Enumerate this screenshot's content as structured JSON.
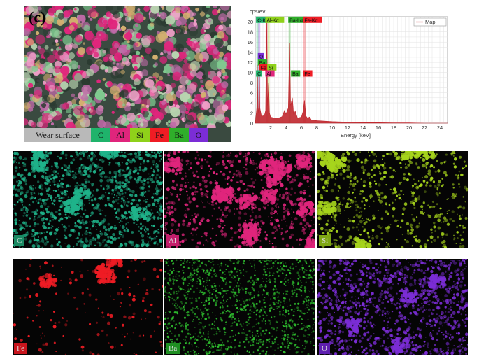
{
  "composite": {
    "panel_letter": "(c)",
    "legend": [
      {
        "label": "Wear surface",
        "color": "#b9b9b9"
      },
      {
        "label": "C",
        "color": "#1fb36b"
      },
      {
        "label": "Al",
        "color": "#e0257c"
      },
      {
        "label": "Si",
        "color": "#8fd11a"
      },
      {
        "label": "Fe",
        "color": "#ef1c24"
      },
      {
        "label": "Ba",
        "color": "#2fae2a"
      },
      {
        "label": "O",
        "color": "#7b2dd6"
      }
    ]
  },
  "chart_data": {
    "type": "line",
    "ylabel": "cps/eV",
    "xlabel": "Energy [keV]",
    "xlim": [
      0,
      25
    ],
    "ylim": [
      0,
      21
    ],
    "xticks": [
      2,
      4,
      6,
      8,
      10,
      12,
      14,
      16,
      18,
      20,
      22,
      24
    ],
    "yticks": [
      0,
      2,
      4,
      6,
      8,
      10,
      12,
      14,
      16,
      18,
      20
    ],
    "legend": "Map",
    "legend_position": "top-right",
    "grid": true,
    "series": [
      {
        "name": "Map",
        "color": "#c0272d",
        "x": [
          0,
          0.2,
          0.28,
          0.35,
          0.45,
          0.52,
          0.6,
          0.8,
          1.0,
          1.2,
          1.35,
          1.49,
          1.6,
          1.74,
          1.85,
          2.0,
          2.5,
          3.0,
          3.5,
          3.8,
          4.0,
          4.3,
          4.47,
          4.6,
          4.83,
          5.0,
          5.2,
          5.5,
          6.0,
          6.2,
          6.4,
          6.6,
          6.8,
          7.06,
          7.3,
          8.0,
          10.0,
          12.0,
          14.0,
          16.0,
          18.0,
          20.0,
          22.0,
          24.0,
          25.0
        ],
        "y": [
          0,
          3.0,
          11.5,
          3.0,
          2.0,
          12.6,
          3.0,
          1.5,
          1.4,
          1.6,
          2.5,
          21.0,
          3.5,
          8.0,
          2.0,
          1.2,
          1.0,
          1.0,
          1.3,
          2.5,
          1.8,
          3.0,
          15.8,
          3.5,
          5.0,
          1.6,
          2.4,
          1.0,
          1.2,
          2.2,
          4.5,
          1.4,
          1.0,
          1.2,
          0.6,
          0.5,
          0.3,
          0.2,
          0.1,
          0.1,
          0.05,
          0.05,
          0,
          0,
          0
        ]
      }
    ],
    "annotations": [
      {
        "label": "C-Kα",
        "x": 0.28,
        "y": 20.2,
        "color": "#1fb36b"
      },
      {
        "label": "Al-Kα",
        "x": 1.49,
        "y": 20.2,
        "color": "#8fd11a"
      },
      {
        "label": "Ba-Lα",
        "x": 4.47,
        "y": 20.2,
        "color": "#2fae2a"
      },
      {
        "label": "Fe-Kα",
        "x": 6.4,
        "y": 20.2,
        "color": "#ef1c24"
      },
      {
        "label": "O",
        "x": 0.52,
        "y": 13.0,
        "color": "#7b2dd6"
      },
      {
        "label": "Ba",
        "x": 0.52,
        "y": 11.8,
        "color": "#2fae2a"
      },
      {
        "label": "Fe",
        "x": 0.7,
        "y": 10.8,
        "color": "#ef1c24"
      },
      {
        "label": "Si",
        "x": 1.74,
        "y": 10.8,
        "color": "#8fd11a"
      },
      {
        "label": "C",
        "x": 0.28,
        "y": 9.6,
        "color": "#1fb36b"
      },
      {
        "label": "Al",
        "x": 1.49,
        "y": 9.6,
        "color": "#e0257c"
      },
      {
        "label": "Ba",
        "x": 4.83,
        "y": 9.6,
        "color": "#2fae2a"
      },
      {
        "label": "Fe",
        "x": 6.4,
        "y": 9.6,
        "color": "#ef1c24"
      }
    ]
  },
  "maps": [
    {
      "element": "C",
      "color": "#1fb38a",
      "tag_color": "#1a8a63"
    },
    {
      "element": "Al",
      "color": "#e0257c",
      "tag_color": "#c41e6b"
    },
    {
      "element": "Si",
      "color": "#a6d41c",
      "tag_color": "#7fa814"
    },
    {
      "element": "Fe",
      "color": "#ef1c24",
      "tag_color": "#c8151d"
    },
    {
      "element": "Ba",
      "color": "#2fc02f",
      "tag_color": "#1f8f22"
    },
    {
      "element": "O",
      "color": "#7b2dd6",
      "tag_color": "#5e1fb0"
    }
  ]
}
